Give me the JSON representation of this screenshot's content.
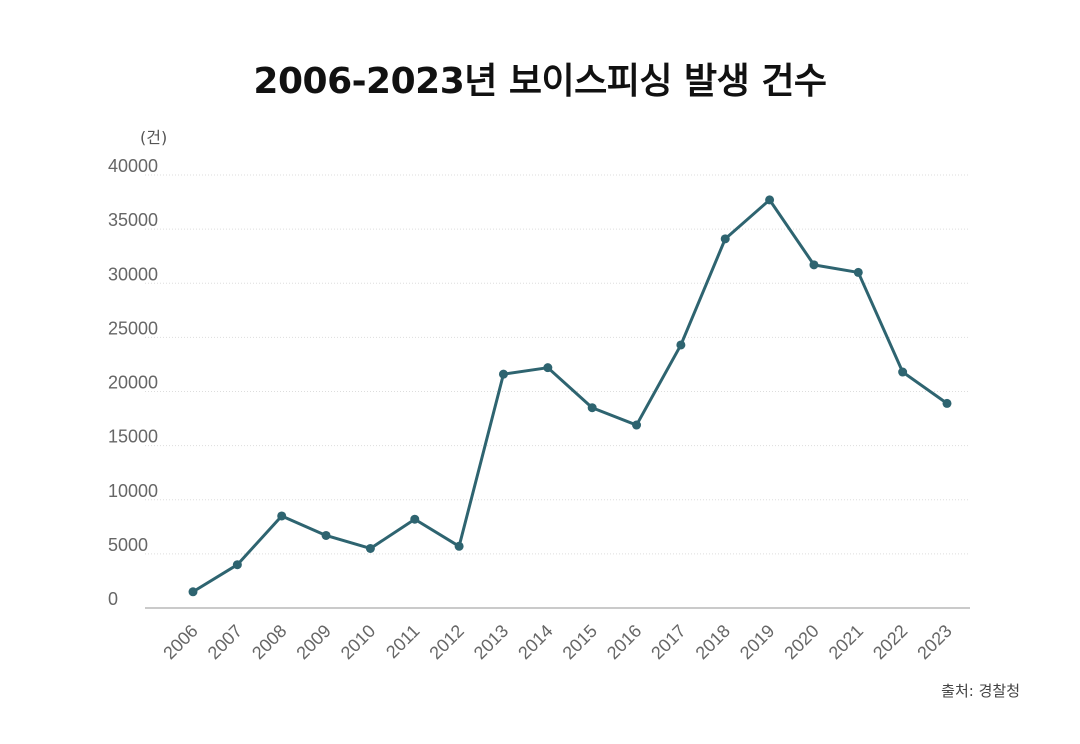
{
  "title": "2006-2023년 보이스피싱 발생 건수",
  "unit_label": "(건)",
  "source": "출처: 경찰청",
  "chart_data": {
    "type": "line",
    "title": "2006-2023년 보이스피싱 발생 건수",
    "ylabel": "(건)",
    "xlabel": "",
    "ylim": [
      0,
      40000
    ],
    "yticks": [
      0,
      5000,
      10000,
      15000,
      20000,
      25000,
      30000,
      35000,
      40000
    ],
    "grid": true,
    "line_color": "#2e6470",
    "categories": [
      "2006",
      "2007",
      "2008",
      "2009",
      "2010",
      "2011",
      "2012",
      "2013",
      "2014",
      "2015",
      "2016",
      "2017",
      "2018",
      "2019",
      "2020",
      "2021",
      "2022",
      "2023"
    ],
    "series": [
      {
        "values": [
          1500,
          4000,
          8500,
          6700,
          5500,
          8200,
          5700,
          21600,
          22200,
          18500,
          16900,
          24300,
          34100,
          37700,
          31700,
          31000,
          21800,
          18900
        ]
      }
    ]
  }
}
